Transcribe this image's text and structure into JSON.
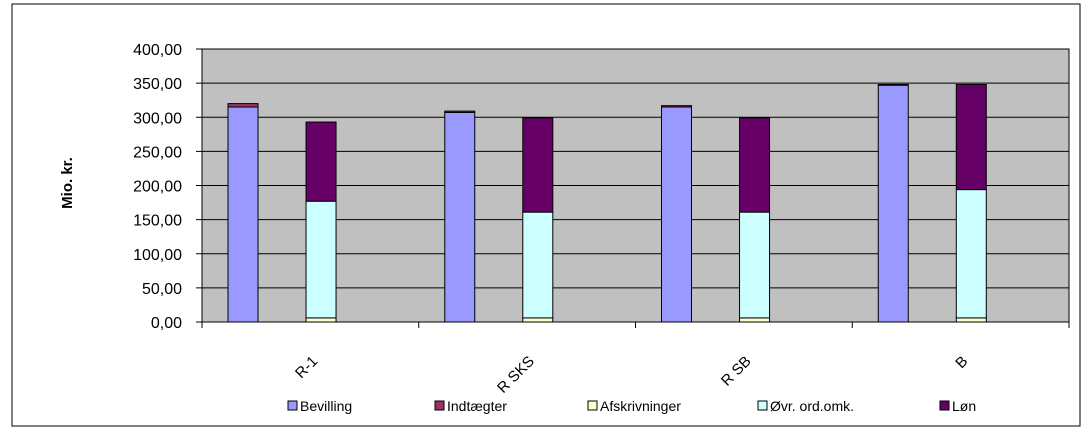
{
  "chart_data": {
    "type": "bar",
    "stacked": true,
    "title": "",
    "xlabel": "",
    "ylabel": "Mio. kr.",
    "ylim": [
      0,
      400
    ],
    "yticks": [
      "0,00",
      "50,00",
      "100,00",
      "150,00",
      "200,00",
      "250,00",
      "300,00",
      "350,00",
      "400,00"
    ],
    "grid": true,
    "plot_background": "#c0c0c0",
    "legend_position": "bottom",
    "categories": [
      "R-1",
      "R SKS",
      "R SB",
      "B"
    ],
    "groups": [
      {
        "stack": "income",
        "series": [
          {
            "name": "Bevilling",
            "color": "#9999ff",
            "values": [
              315,
              307,
              315,
              347
            ]
          },
          {
            "name": "Indtægter",
            "color": "#993366",
            "values": [
              5,
              2,
              2,
              1
            ]
          }
        ]
      },
      {
        "stack": "expenses",
        "series": [
          {
            "name": "Afskrivninger",
            "color": "#ffffcc",
            "values": [
              6,
              6,
              6,
              6
            ]
          },
          {
            "name": "Øvr. ord.omk.",
            "color": "#ccffff",
            "values": [
              171,
              155,
              155,
              188
            ]
          },
          {
            "name": "Løn",
            "color": "#660066",
            "values": [
              116,
              138,
              138,
              154
            ]
          }
        ]
      }
    ],
    "legend": [
      {
        "label": "Bevilling",
        "color": "#9999ff"
      },
      {
        "label": "Indtægter",
        "color": "#993366"
      },
      {
        "label": "Afskrivninger",
        "color": "#ffffcc"
      },
      {
        "label": "Øvr. ord.omk.",
        "color": "#ccffff"
      },
      {
        "label": "Løn",
        "color": "#660066"
      }
    ]
  }
}
